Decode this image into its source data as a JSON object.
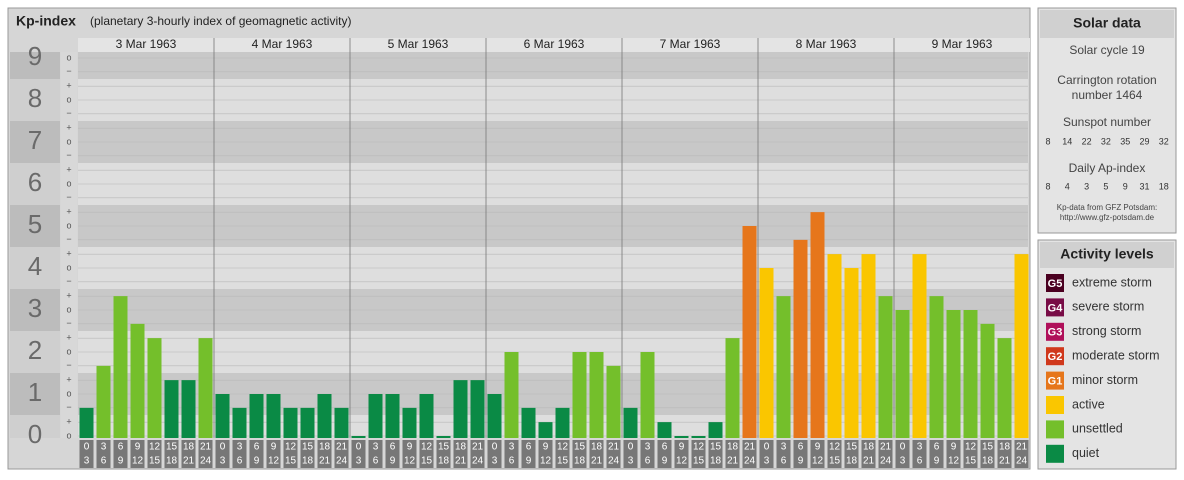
{
  "chart_data": {
    "type": "bar",
    "title": "Kp-index",
    "subtitle": "(planetary 3-hourly index of geomagnetic activity)",
    "ylim": [
      0,
      9
    ],
    "yticks": [
      0,
      1,
      2,
      3,
      4,
      5,
      6,
      7,
      8,
      9
    ],
    "minor_ticks": [
      {
        "value": 0,
        "label": "o"
      },
      {
        "value": 0.33,
        "label": "+"
      },
      {
        "value": 0.67,
        "label": "−"
      },
      {
        "value": 1,
        "label": "o"
      },
      {
        "value": 1.33,
        "label": "+"
      },
      {
        "value": 1.67,
        "label": "−"
      },
      {
        "value": 2,
        "label": "o"
      },
      {
        "value": 2.33,
        "label": "+"
      },
      {
        "value": 2.67,
        "label": "−"
      },
      {
        "value": 3,
        "label": "o"
      },
      {
        "value": 3.33,
        "label": "+"
      },
      {
        "value": 3.67,
        "label": "−"
      },
      {
        "value": 4,
        "label": "o"
      },
      {
        "value": 4.33,
        "label": "+"
      },
      {
        "value": 4.67,
        "label": "−"
      },
      {
        "value": 5,
        "label": "o"
      },
      {
        "value": 5.33,
        "label": "+"
      },
      {
        "value": 5.67,
        "label": "−"
      },
      {
        "value": 6,
        "label": "o"
      },
      {
        "value": 6.33,
        "label": "+"
      },
      {
        "value": 6.67,
        "label": "−"
      },
      {
        "value": 7,
        "label": "o"
      },
      {
        "value": 7.33,
        "label": "+"
      },
      {
        "value": 7.67,
        "label": "−"
      },
      {
        "value": 8,
        "label": "o"
      },
      {
        "value": 8.33,
        "label": "+"
      },
      {
        "value": 8.67,
        "label": "−"
      },
      {
        "value": 9,
        "label": "o"
      }
    ],
    "hour_starts": [
      0,
      3,
      6,
      9,
      12,
      15,
      18,
      21
    ],
    "hour_ends": [
      3,
      6,
      9,
      12,
      15,
      18,
      21,
      24
    ],
    "days": [
      {
        "date": "3 Mar 1963",
        "values": [
          0.67,
          1.67,
          3.33,
          2.67,
          2.33,
          1.33,
          1.33,
          2.33
        ],
        "colors": [
          "#0a8a45",
          "#74bf2b",
          "#74bf2b",
          "#74bf2b",
          "#74bf2b",
          "#0a8a45",
          "#0a8a45",
          "#74bf2b"
        ]
      },
      {
        "date": "4 Mar 1963",
        "values": [
          1,
          0.67,
          1,
          1,
          0.67,
          0.67,
          1,
          0.67
        ],
        "colors": [
          "#0a8a45",
          "#0a8a45",
          "#0a8a45",
          "#0a8a45",
          "#0a8a45",
          "#0a8a45",
          "#0a8a45",
          "#0a8a45"
        ]
      },
      {
        "date": "5 Mar 1963",
        "values": [
          0,
          1,
          1,
          0.67,
          1,
          0,
          1.33,
          1.33
        ],
        "colors": [
          "#0a8a45",
          "#0a8a45",
          "#0a8a45",
          "#0a8a45",
          "#0a8a45",
          "#0a8a45",
          "#0a8a45",
          "#0a8a45"
        ]
      },
      {
        "date": "6 Mar 1963",
        "values": [
          1,
          2,
          0.67,
          0.33,
          0.67,
          2,
          2,
          1.67
        ],
        "colors": [
          "#0a8a45",
          "#74bf2b",
          "#0a8a45",
          "#0a8a45",
          "#0a8a45",
          "#74bf2b",
          "#74bf2b",
          "#74bf2b"
        ]
      },
      {
        "date": "7 Mar 1963",
        "values": [
          0.67,
          2,
          0.33,
          0,
          0,
          0.33,
          2.33,
          5
        ],
        "colors": [
          "#0a8a45",
          "#74bf2b",
          "#0a8a45",
          "#0a8a45",
          "#0a8a45",
          "#0a8a45",
          "#74bf2b",
          "#e6761b"
        ]
      },
      {
        "date": "8 Mar 1963",
        "values": [
          4,
          3.33,
          4.67,
          5.33,
          4.33,
          4,
          4.33,
          3.33
        ],
        "colors": [
          "#fac600",
          "#74bf2b",
          "#e6761b",
          "#e6761b",
          "#fac600",
          "#fac600",
          "#fac600",
          "#74bf2b"
        ]
      },
      {
        "date": "9 Mar 1963",
        "values": [
          3,
          4.33,
          3.33,
          3,
          3,
          2.67,
          2.33,
          4.33
        ],
        "colors": [
          "#74bf2b",
          "#fac600",
          "#74bf2b",
          "#74bf2b",
          "#74bf2b",
          "#74bf2b",
          "#74bf2b",
          "#fac600"
        ]
      }
    ],
    "solar": {
      "title": "Solar data",
      "cycle": "Solar cycle 19",
      "carrington_1": "Carrington rotation",
      "carrington_2": "number 1464",
      "sunspot_title": "Sunspot number",
      "sunspot": [
        8,
        14,
        22,
        32,
        35,
        29,
        32
      ],
      "ap_title": "Daily Ap-index",
      "ap": [
        8,
        4,
        3,
        5,
        9,
        31,
        18
      ],
      "source_1": "Kp-data from GFZ Potsdam:",
      "source_2": "http://www.gfz-potsdam.de"
    },
    "legend_title": "Activity levels",
    "legend": [
      {
        "code": "G5",
        "name": "extreme storm",
        "color": "#4a0020"
      },
      {
        "code": "G4",
        "name": "severe storm",
        "color": "#780c46"
      },
      {
        "code": "G3",
        "name": "strong storm",
        "color": "#b0105a"
      },
      {
        "code": "G2",
        "name": "moderate storm",
        "color": "#d0381c"
      },
      {
        "code": "G1",
        "name": "minor storm",
        "color": "#e6761b"
      },
      {
        "name": "active",
        "color": "#fac600"
      },
      {
        "name": "unsettled",
        "color": "#74bf2b"
      },
      {
        "name": "quiet",
        "color": "#0a8a45"
      }
    ]
  }
}
